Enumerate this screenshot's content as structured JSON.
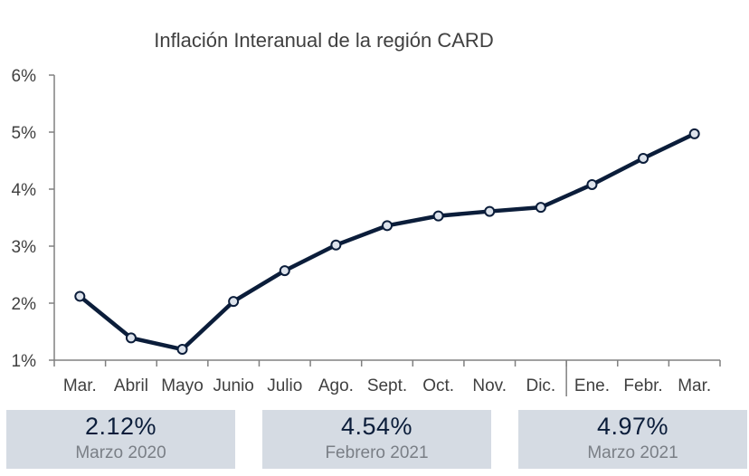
{
  "chart_data": {
    "type": "line",
    "title": "Inflación Interanual de la región CARD",
    "xlabel": "",
    "ylabel": "",
    "categories": [
      "Mar.",
      "Abril",
      "Mayo",
      "Junio",
      "Julio",
      "Ago.",
      "Sept.",
      "Oct.",
      "Nov.",
      "Dic.",
      "Ene.",
      "Febr.",
      "Mar."
    ],
    "series": [
      {
        "values": [
          2.12,
          1.39,
          1.19,
          2.03,
          2.57,
          3.02,
          3.36,
          3.53,
          3.61,
          3.68,
          4.08,
          4.54,
          4.97
        ]
      }
    ],
    "ylim": [
      1,
      6
    ],
    "yticks": [
      "1%",
      "2%",
      "3%",
      "4%",
      "5%",
      "6%"
    ],
    "grid": false,
    "year_separator_after": "Dic.",
    "colors": {
      "line": "#0b1d3a",
      "marker_fill": "#dde3ec",
      "axis": "#808080"
    }
  },
  "cards": [
    {
      "value": "2.12%",
      "label": "Marzo 2020"
    },
    {
      "value": "4.54%",
      "label": "Febrero 2021"
    },
    {
      "value": "4.97%",
      "label": "Marzo 2021"
    }
  ],
  "colors": {
    "card_bg": "#d5dbe3",
    "card_value": "#0b1d3a",
    "card_label": "#7a7f86"
  }
}
